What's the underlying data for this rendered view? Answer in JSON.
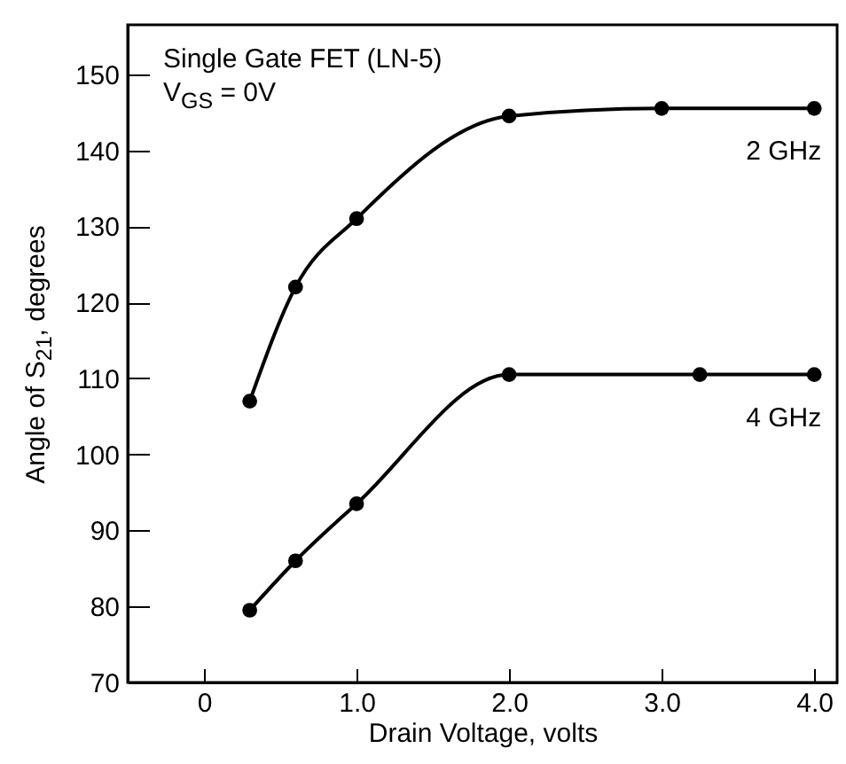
{
  "chart_data": {
    "type": "line",
    "xlabel": "Drain Voltage, volts",
    "ylabel": "Angle of S$_{21}$, degrees",
    "annotations": [
      "Single Gate FET (LN-5)",
      "V$_{GS}$ = 0V"
    ],
    "series": [
      {
        "name": "2 GHz",
        "color": "#000000",
        "x": [
          0.3,
          0.6,
          1.0,
          2.0,
          3.0,
          4.0
        ],
        "values": [
          107,
          122,
          131,
          144.5,
          145.5,
          145.5
        ]
      },
      {
        "name": "4 GHz",
        "color": "#000000",
        "x": [
          0.3,
          0.6,
          1.0,
          2.0,
          3.25,
          4.0
        ],
        "values": [
          79.5,
          86,
          93.5,
          110.5,
          110.5,
          110.5
        ]
      }
    ],
    "xlim": [
      -0.5,
      4.15
    ],
    "ylim": [
      70,
      156.5
    ],
    "xticks": [
      0,
      {
        "value": 1,
        "label": "1.0"
      },
      {
        "value": 2,
        "label": "2.0"
      },
      {
        "value": 3,
        "label": "3.0"
      },
      {
        "value": 4,
        "label": "4.0"
      }
    ],
    "yticks": [
      70,
      80,
      90,
      100,
      110,
      120,
      130,
      140,
      150
    ],
    "grid": false,
    "marker": "circle",
    "line_style": "solid"
  }
}
